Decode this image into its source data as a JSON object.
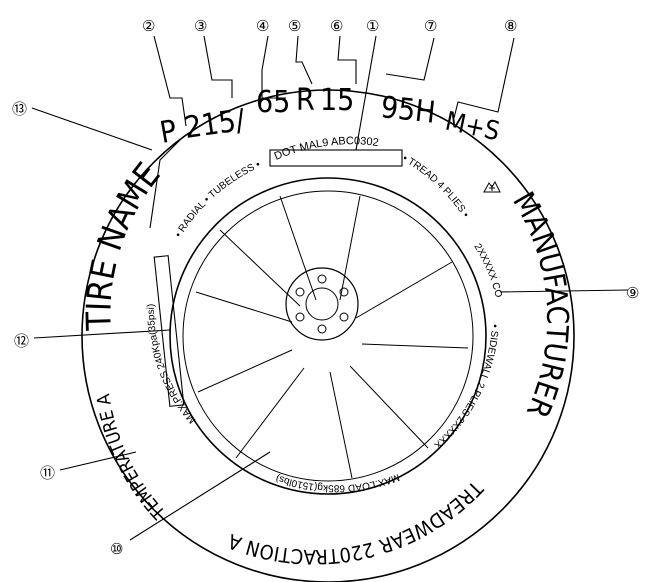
{
  "tire": {
    "size_prefix": "P",
    "section_width": "215/",
    "aspect_ratio": "65",
    "construction": "R",
    "rim_diameter": "15",
    "load_speed": "95H",
    "mud_snow": "M+S",
    "tire_name": "TIRE NAME",
    "manufacturer": "MANUFACTURER",
    "dot_code": "DOT MAL9 ABC0302",
    "inner_top_left": "• RADIAL • TUBELESS •",
    "inner_top_right": "• TREAD 4 PLIES •",
    "tread_plies_code": "2XXXXX CORD",
    "sidewall": "• SIDEWALL 2 PLIES 2XXXXX CORD •",
    "max_load": "MAX.LOAD 685kg(1510lbs)",
    "max_press": "MAX.PRESS 240Kpa(35psi)",
    "temperature": "TEMPERATURE A",
    "treadwear": "TREADWEAR 220TRACTION A"
  },
  "callouts": [
    "①",
    "②",
    "③",
    "④",
    "⑤",
    "⑥",
    "⑦",
    "⑧",
    "⑨",
    "⑩",
    "⑪",
    "⑫",
    "⑬"
  ],
  "icons": [
    "snowflake-mountain-icon"
  ]
}
